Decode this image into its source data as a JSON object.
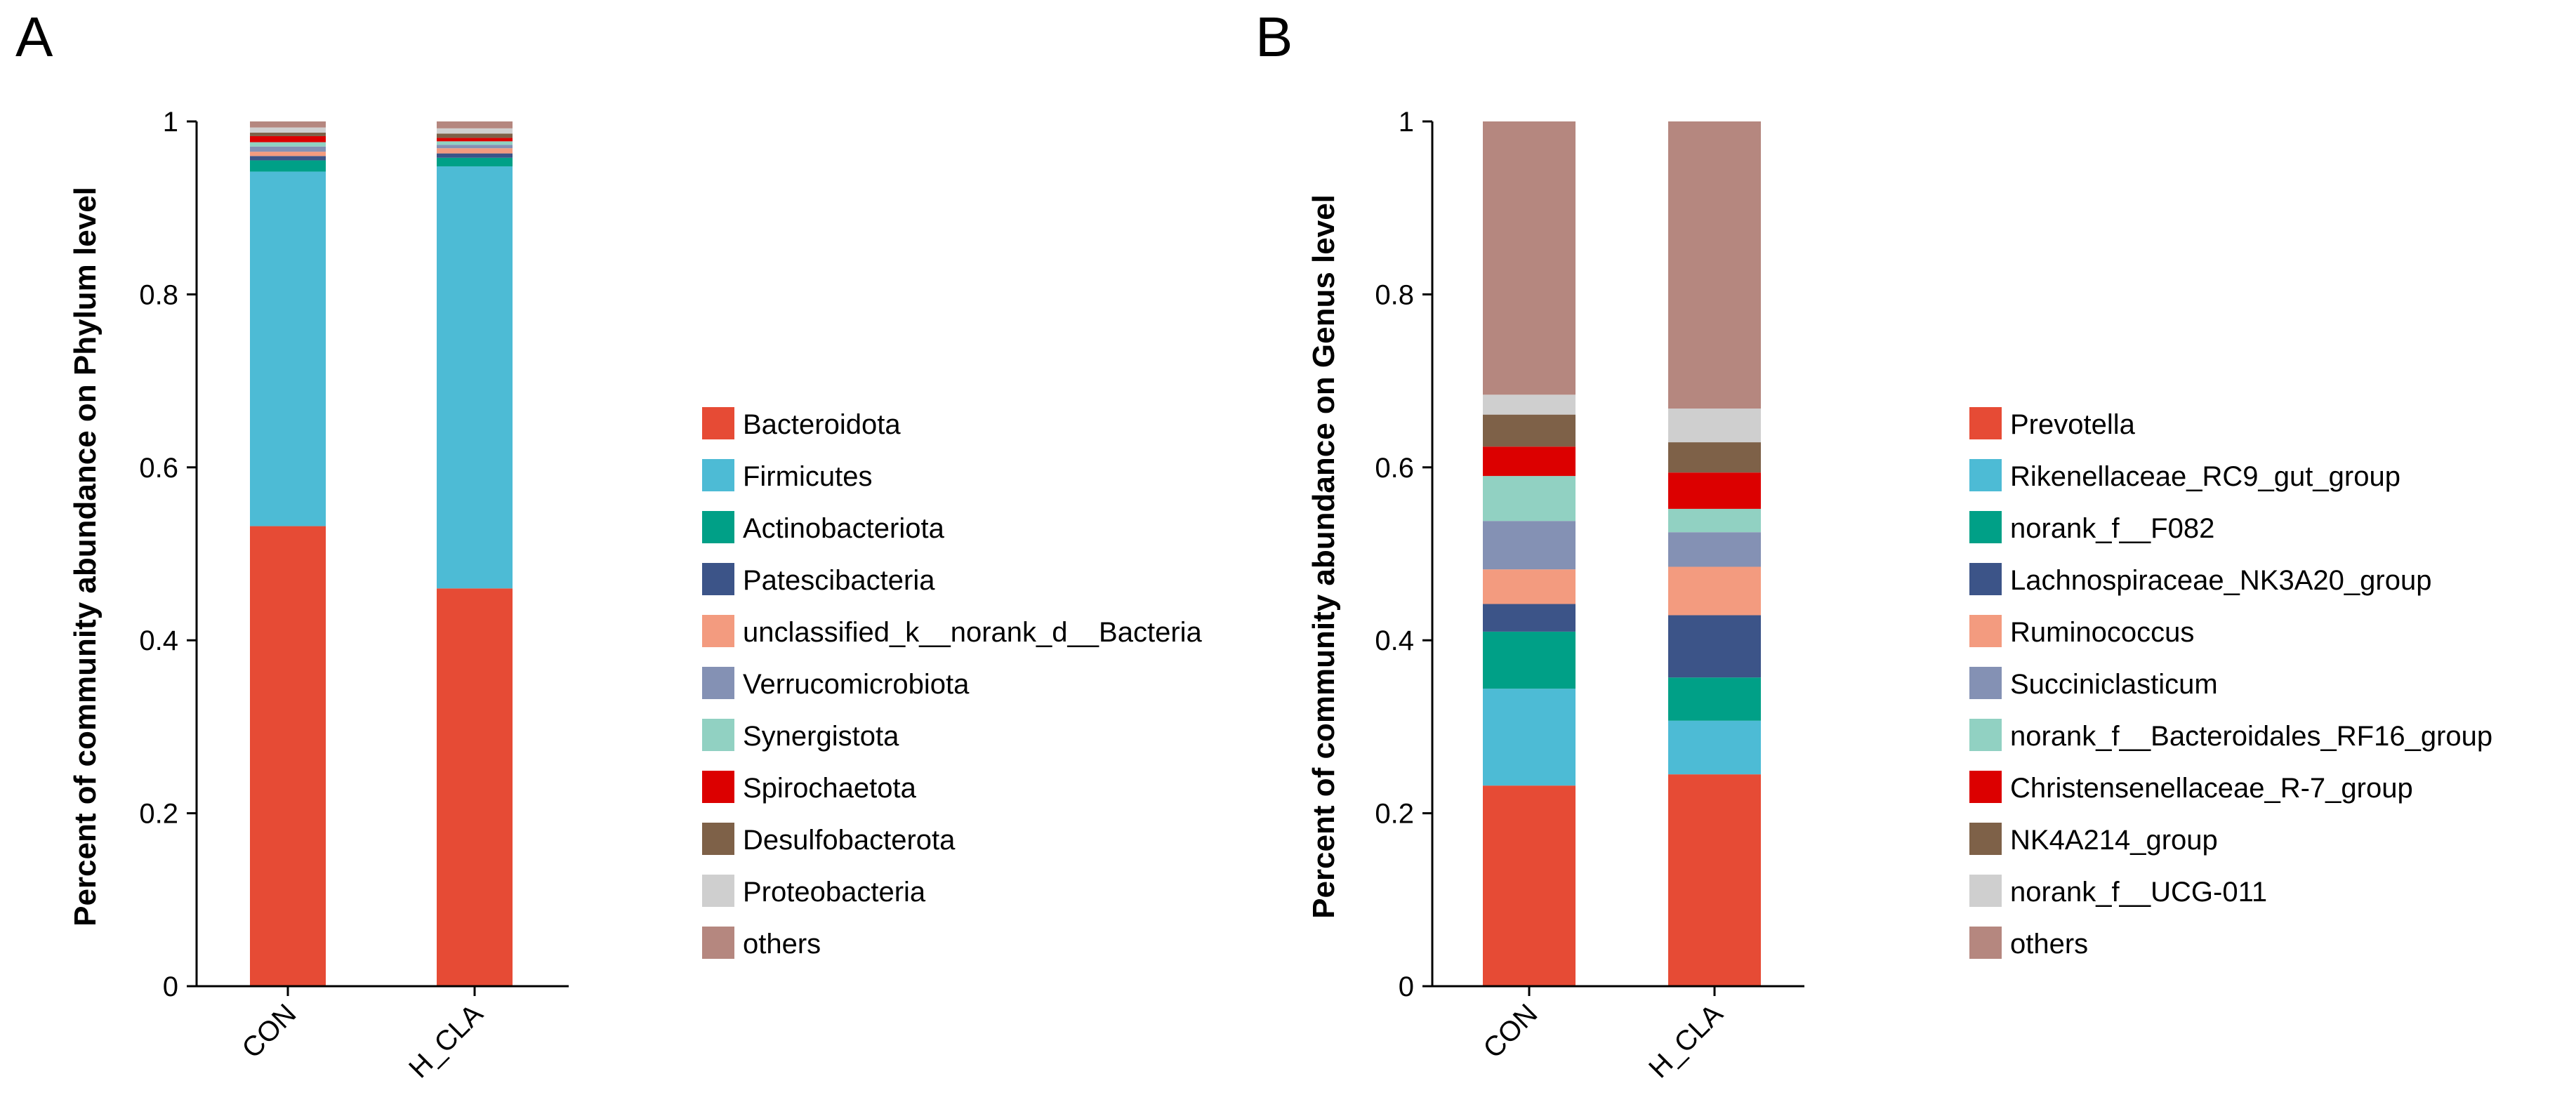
{
  "chart_data": [
    {
      "panel_label": "A",
      "type": "bar",
      "stacked": true,
      "title": "",
      "xlabel": "",
      "ylabel": "Percent of community abundance on Phylum level",
      "ylim": [
        0,
        1
      ],
      "yticks": [
        "0",
        "0.2",
        "0.4",
        "0.6",
        "0.8",
        "1"
      ],
      "categories": [
        "CON",
        "H_CLA"
      ],
      "legend_position": "right",
      "series": [
        {
          "name": "Bacteroidota",
          "color": "#E64B35",
          "values": [
            0.532,
            0.46
          ]
        },
        {
          "name": "Firmicutes",
          "color": "#4DBBD5",
          "values": [
            0.41,
            0.488
          ]
        },
        {
          "name": "Actinobacteriota",
          "color": "#00A087",
          "values": [
            0.013,
            0.01
          ]
        },
        {
          "name": "Patescibacteria",
          "color": "#3C5488",
          "values": [
            0.005,
            0.005
          ]
        },
        {
          "name": "unclassified_k__norank_d__Bacteria",
          "color": "#F39B7F",
          "values": [
            0.005,
            0.006
          ]
        },
        {
          "name": "Verrucomicrobiota",
          "color": "#8491B4",
          "values": [
            0.006,
            0.004
          ]
        },
        {
          "name": "Synergistota",
          "color": "#91D1C2",
          "values": [
            0.005,
            0.004
          ]
        },
        {
          "name": "Spirochaetota",
          "color": "#DC0000",
          "values": [
            0.007,
            0.004
          ]
        },
        {
          "name": "Desulfobacterota",
          "color": "#7E6148",
          "values": [
            0.004,
            0.005
          ]
        },
        {
          "name": "Proteobacteria",
          "color": "#CFCFCF",
          "values": [
            0.006,
            0.006
          ]
        },
        {
          "name": "others",
          "color": "#B5877F",
          "values": [
            0.007,
            0.008
          ]
        }
      ]
    },
    {
      "panel_label": "B",
      "type": "bar",
      "stacked": true,
      "title": "",
      "xlabel": "",
      "ylabel": "Percent of community abundance on Genus level",
      "ylim": [
        0,
        1
      ],
      "yticks": [
        "0",
        "0.2",
        "0.4",
        "0.6",
        "0.8",
        "1"
      ],
      "categories": [
        "CON",
        "H_CLA"
      ],
      "legend_position": "right",
      "series": [
        {
          "name": "Prevotella",
          "color": "#E64B35",
          "values": [
            0.232,
            0.245
          ]
        },
        {
          "name": "Rikenellaceae_RC9_gut_group",
          "color": "#4DBBD5",
          "values": [
            0.112,
            0.062
          ]
        },
        {
          "name": "norank_f__F082",
          "color": "#00A087",
          "values": [
            0.066,
            0.05
          ]
        },
        {
          "name": "Lachnospiraceae_NK3A20_group",
          "color": "#3C5488",
          "values": [
            0.032,
            0.072
          ]
        },
        {
          "name": "Ruminococcus",
          "color": "#F39B7F",
          "values": [
            0.04,
            0.056
          ]
        },
        {
          "name": "Succiniclasticum",
          "color": "#8491B4",
          "values": [
            0.056,
            0.04
          ]
        },
        {
          "name": "norank_f__Bacteroidales_RF16_group",
          "color": "#91D1C2",
          "values": [
            0.052,
            0.027
          ]
        },
        {
          "name": "Christensenellaceae_R-7_group",
          "color": "#DC0000",
          "values": [
            0.034,
            0.042
          ]
        },
        {
          "name": "NK4A214_group",
          "color": "#7E6148",
          "values": [
            0.037,
            0.035
          ]
        },
        {
          "name": "norank_f__UCG-011",
          "color": "#CFCFCF",
          "values": [
            0.023,
            0.039
          ]
        },
        {
          "name": "others",
          "color": "#B5877F",
          "values": [
            0.316,
            0.332
          ]
        }
      ]
    }
  ]
}
